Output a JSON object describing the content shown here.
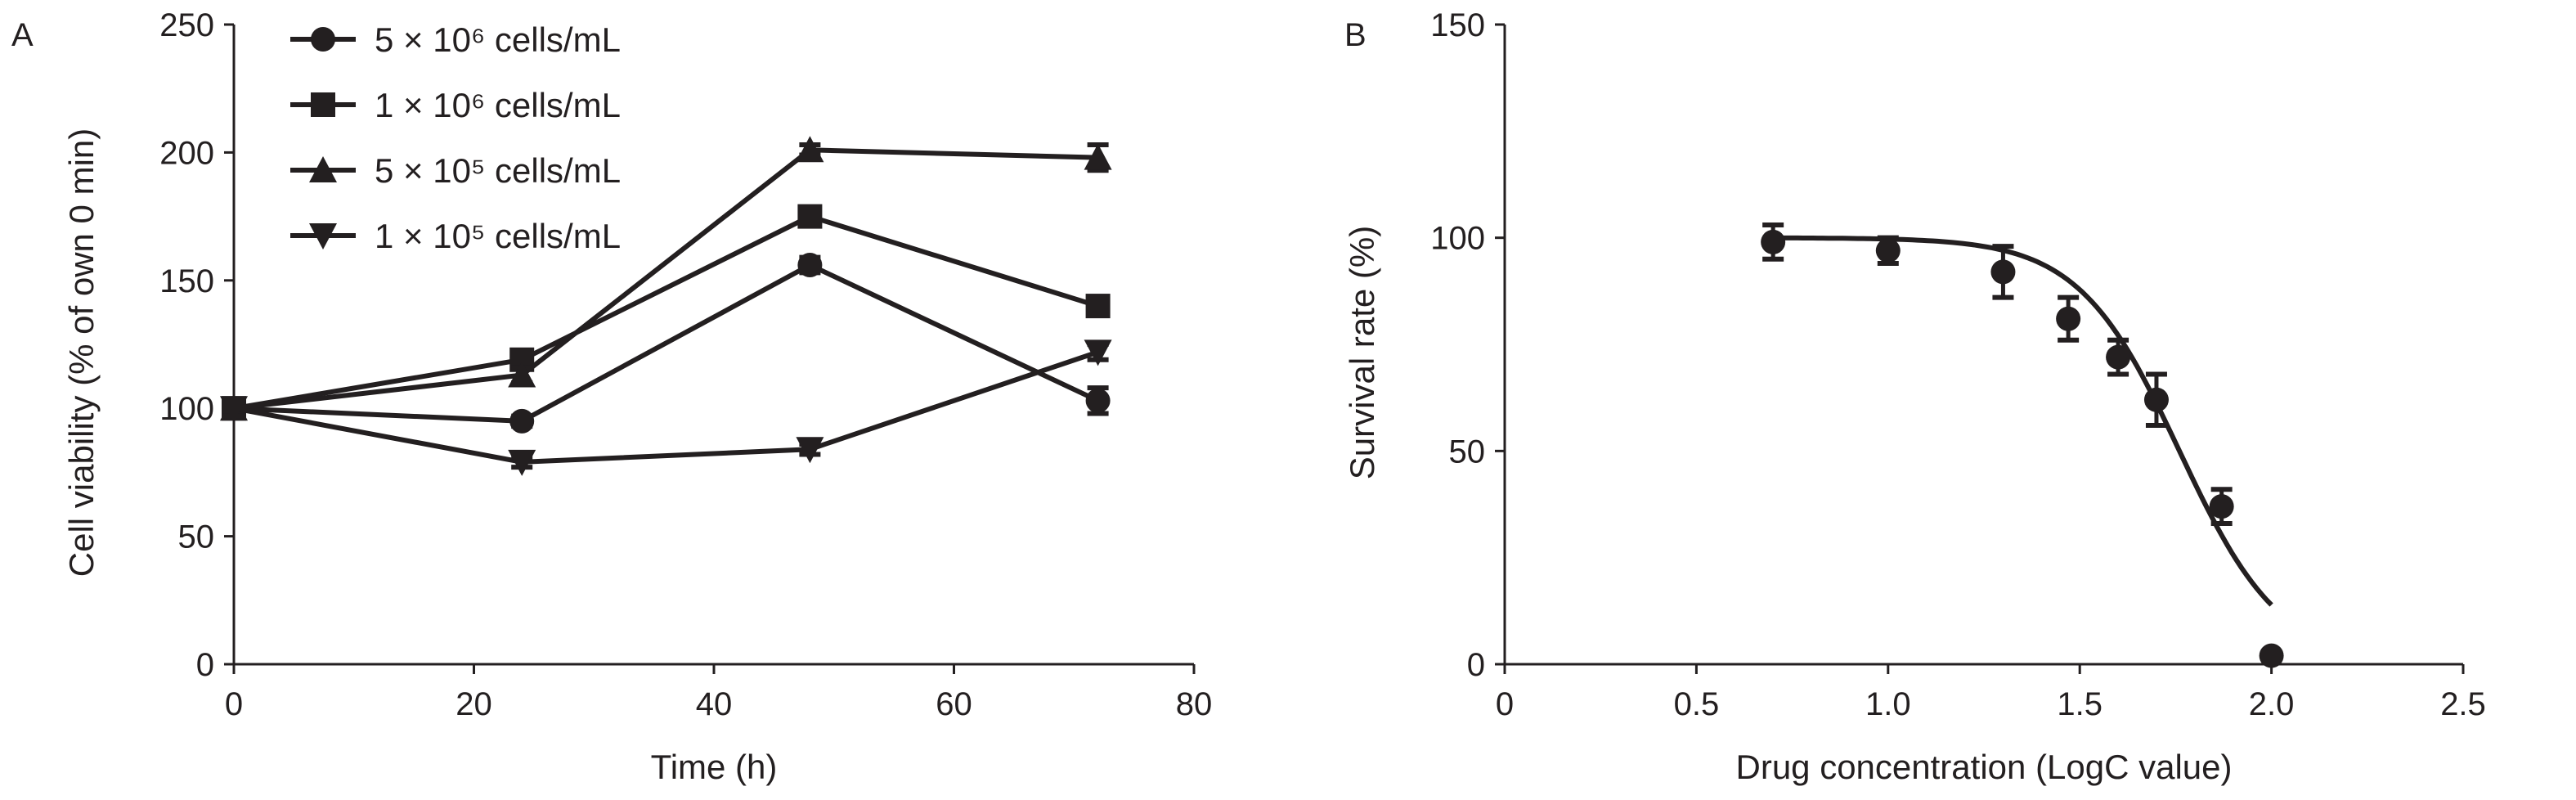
{
  "chart_data": [
    {
      "panel_label": "A",
      "type": "line",
      "xlabel": "Time (h)",
      "ylabel": "Cell viability (% of own 0 min)",
      "xlim": [
        0,
        80
      ],
      "ylim": [
        0,
        250
      ],
      "xticks": [
        0,
        20,
        40,
        60,
        80
      ],
      "yticks": [
        0,
        50,
        100,
        150,
        200,
        250
      ],
      "legend_position": "top-left",
      "x": [
        0,
        24,
        48,
        72
      ],
      "series": [
        {
          "name": "5 × 10⁶ cells/mL",
          "marker": "circle",
          "values": [
            100,
            95,
            156,
            103
          ],
          "errors": [
            3,
            2,
            3,
            5
          ]
        },
        {
          "name": "1 × 10⁶ cells/mL",
          "marker": "square",
          "values": [
            100,
            119,
            175,
            140
          ],
          "errors": [
            3,
            3,
            3,
            3
          ]
        },
        {
          "name": "5 × 10⁵ cells/mL",
          "marker": "triangle-up",
          "values": [
            100,
            113,
            201,
            198
          ],
          "errors": [
            3,
            3,
            2,
            5
          ]
        },
        {
          "name": "1 × 10⁵ cells/mL",
          "marker": "triangle-down",
          "values": [
            100,
            79,
            84,
            122
          ],
          "errors": [
            3,
            2,
            2,
            3
          ]
        }
      ]
    },
    {
      "panel_label": "B",
      "type": "scatter",
      "xlabel": "Drug concentration (LogC value)",
      "ylabel": "Survival rate (%)",
      "xlim": [
        0,
        2.5
      ],
      "ylim": [
        0,
        150
      ],
      "xticks": [
        "0",
        "0.5",
        "1.0",
        "1.5",
        "2.0",
        "2.5"
      ],
      "yticks": [
        0,
        50,
        100,
        150
      ],
      "x": [
        0.7,
        1.0,
        1.3,
        1.47,
        1.6,
        1.7,
        1.87,
        2.0
      ],
      "values": [
        99,
        97,
        92,
        81,
        72,
        62,
        37,
        2
      ],
      "errors": [
        4,
        3,
        6,
        5,
        4,
        6,
        4,
        0
      ],
      "fit": {
        "type": "sigmoid",
        "top": 100,
        "bottom": 0,
        "logIC50": 1.76,
        "hill": 3.3,
        "x_range": [
          0.7,
          2.0
        ]
      }
    }
  ]
}
